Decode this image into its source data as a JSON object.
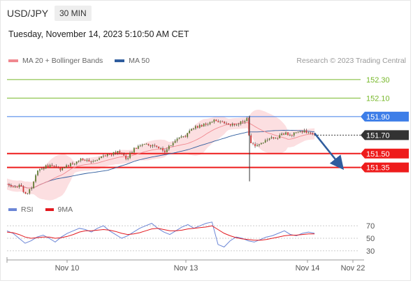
{
  "header": {
    "symbol": "USD/JPY",
    "timeframe": "30 MIN",
    "datetime": "Tuesday, November 14, 2023 5:10:50 AM CET"
  },
  "legend_main": [
    {
      "label": "MA 20 + Bollinger Bands",
      "color": "#f0888f"
    },
    {
      "label": "MA 50",
      "color": "#2f5d9e"
    }
  ],
  "legend_rsi": [
    {
      "label": "RSI",
      "color": "#6b86d6"
    },
    {
      "label": "9MA",
      "color": "#e3191f"
    }
  ],
  "copyright": "Research © 2023 Trading Central",
  "colors": {
    "target": "#77b82a",
    "pivot": "#3d7ee8",
    "support": "#ee1c1c",
    "current": "#333333",
    "bollinger": "#fbd9dc",
    "candle_up": "#5c7a2e",
    "candle_down": "#cf3434",
    "ma20": "#f0888f",
    "ma50": "#2f5d9e"
  },
  "chart_data": [
    {
      "type": "candlestick",
      "title": "USD/JPY",
      "ylim": [
        151.0,
        152.42
      ],
      "levels": [
        {
          "label": "152.30",
          "value": 152.3,
          "kind": "target"
        },
        {
          "label": "152.10",
          "value": 152.1,
          "kind": "target"
        },
        {
          "label": "151.90",
          "value": 151.9,
          "kind": "pivot"
        },
        {
          "label": "151.70",
          "value": 151.7,
          "kind": "current"
        },
        {
          "label": "151.50",
          "value": 151.5,
          "kind": "support"
        },
        {
          "label": "151.35",
          "value": 151.35,
          "kind": "support"
        }
      ],
      "x_ticks": [
        "Nov 10",
        "Nov 13",
        "Nov 14",
        "Nov 22"
      ],
      "price_path": [
        [
          0,
          151.17
        ],
        [
          4,
          151.12
        ],
        [
          8,
          151.16
        ],
        [
          10,
          151.04
        ],
        [
          14,
          151.13
        ],
        [
          18,
          151.34
        ],
        [
          22,
          151.36
        ],
        [
          26,
          151.38
        ],
        [
          30,
          151.32
        ],
        [
          34,
          151.36
        ],
        [
          38,
          151.4
        ],
        [
          42,
          151.44
        ],
        [
          46,
          151.42
        ],
        [
          50,
          151.43
        ],
        [
          54,
          151.46
        ],
        [
          58,
          151.49
        ],
        [
          62,
          151.52
        ],
        [
          66,
          151.5
        ],
        [
          68,
          151.44
        ],
        [
          72,
          151.55
        ],
        [
          76,
          151.58
        ],
        [
          80,
          151.6
        ],
        [
          84,
          151.58
        ],
        [
          88,
          151.56
        ],
        [
          90,
          151.52
        ],
        [
          94,
          151.62
        ],
        [
          98,
          151.66
        ],
        [
          102,
          151.7
        ],
        [
          106,
          151.78
        ],
        [
          110,
          151.8
        ],
        [
          114,
          151.82
        ],
        [
          118,
          151.86
        ],
        [
          122,
          151.84
        ],
        [
          126,
          151.82
        ],
        [
          130,
          151.8
        ],
        [
          134,
          151.85
        ],
        [
          137,
          151.88
        ],
        [
          138,
          151.62
        ],
        [
          142,
          151.58
        ],
        [
          146,
          151.62
        ],
        [
          150,
          151.66
        ],
        [
          154,
          151.68
        ],
        [
          158,
          151.72
        ],
        [
          162,
          151.7
        ],
        [
          166,
          151.74
        ],
        [
          170,
          151.74
        ],
        [
          175,
          151.72
        ]
      ],
      "wicks": [
        [
          138,
          151.91,
          151.2
        ]
      ],
      "forecast_arrow": [
        [
          175,
          151.72
        ],
        [
          190,
          151.36
        ]
      ]
    },
    {
      "type": "line",
      "series": [
        {
          "name": "RSI",
          "values": [
            62,
            58,
            50,
            42,
            46,
            52,
            55,
            50,
            44,
            52,
            58,
            62,
            66,
            64,
            60,
            66,
            70,
            62,
            56,
            50,
            54,
            60,
            66,
            70,
            74,
            66,
            60,
            56,
            62,
            68,
            72,
            66,
            70,
            74,
            76,
            40,
            36,
            46,
            52,
            50,
            46,
            44,
            48,
            52,
            54,
            58,
            62,
            56,
            54,
            58,
            60,
            58
          ]
        },
        {
          "name": "9MA",
          "values": [
            60,
            59,
            56,
            52,
            50,
            51,
            52,
            52,
            50,
            51,
            53,
            56,
            60,
            62,
            62,
            63,
            64,
            63,
            61,
            58,
            56,
            57,
            59,
            62,
            65,
            66,
            64,
            62,
            62,
            63,
            65,
            66,
            67,
            68,
            70,
            64,
            58,
            54,
            51,
            49,
            48,
            47,
            47,
            48,
            50,
            52,
            54,
            55,
            55,
            56,
            57,
            57
          ]
        }
      ],
      "ylim": [
        22,
        78
      ],
      "y_ticks": [
        70,
        50,
        30
      ]
    }
  ]
}
